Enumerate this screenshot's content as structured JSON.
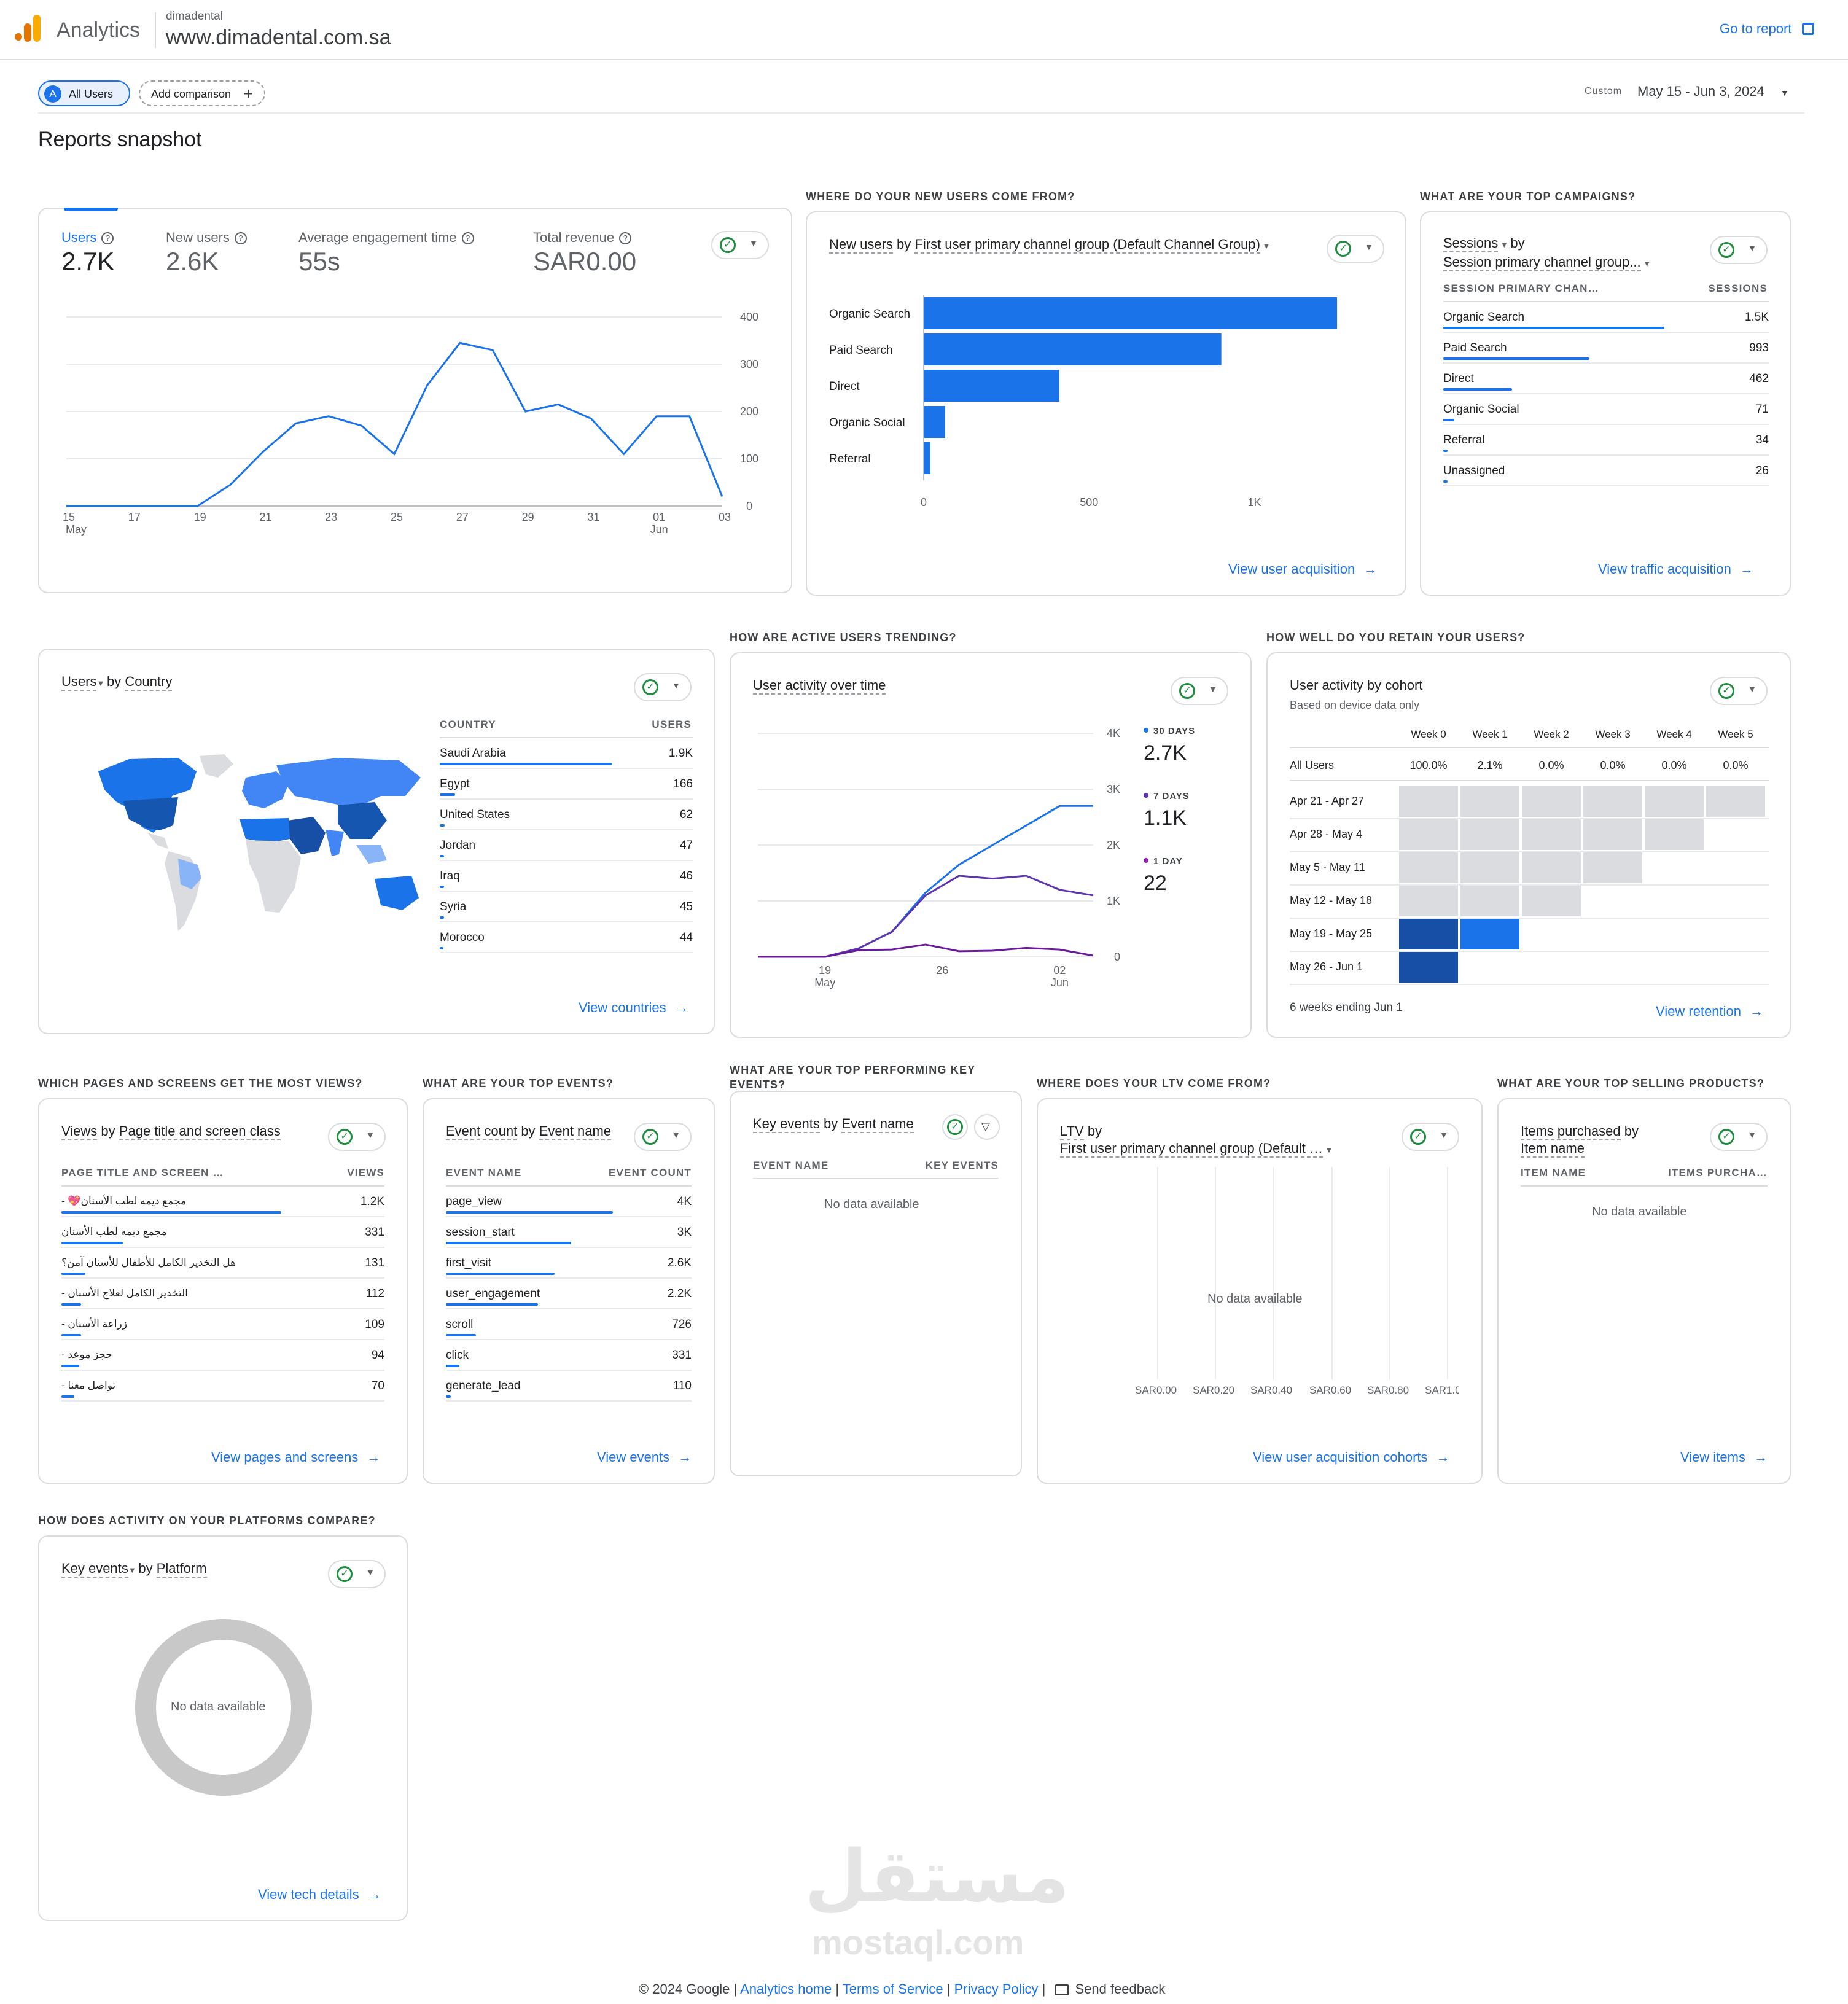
{
  "header": {
    "app_name": "Analytics",
    "account": "dimadental",
    "property": "www.dimadental.com.sa",
    "go_to_report": "Go to report"
  },
  "toolbar": {
    "segment_letter": "A",
    "segment": "All Users",
    "add_comparison": "Add comparison",
    "date_label": "Custom",
    "date_range": "May 15 - Jun 3, 2024"
  },
  "page_title": "Reports snapshot",
  "overview": {
    "metrics": [
      {
        "label": "Users",
        "value": "2.7K"
      },
      {
        "label": "New users",
        "value": "2.6K"
      },
      {
        "label": "Average engagement time",
        "value": "55s"
      },
      {
        "label": "Total revenue",
        "value": "SAR0.00"
      }
    ],
    "y_ticks": [
      "400",
      "300",
      "200",
      "100",
      "0"
    ],
    "x_ticks": [
      "15",
      "17",
      "19",
      "21",
      "23",
      "25",
      "27",
      "29",
      "31",
      "01",
      "03"
    ],
    "x_sub": {
      "may": "May",
      "jun": "Jun"
    }
  },
  "acquisition": {
    "heading": "WHERE DO YOUR NEW USERS COME FROM?",
    "title_metric": "New users",
    "title_by": "by",
    "title_dim": "First user primary channel group (Default Channel Group)",
    "ticks": [
      "0",
      "500",
      "1K"
    ],
    "link": "View user acquisition"
  },
  "campaigns": {
    "heading": "WHAT ARE YOUR TOP CAMPAIGNS?",
    "title_metric": "Sessions",
    "title_by": "by",
    "title_dim": "Session primary channel group...",
    "col1": "SESSION PRIMARY CHAN…",
    "col2": "SESSIONS",
    "rows": [
      {
        "name": "Organic Search",
        "value": "1.5K",
        "pct": 1.0
      },
      {
        "name": "Paid Search",
        "value": "993",
        "pct": 0.66
      },
      {
        "name": "Direct",
        "value": "462",
        "pct": 0.31
      },
      {
        "name": "Organic Social",
        "value": "71",
        "pct": 0.05
      },
      {
        "name": "Referral",
        "value": "34",
        "pct": 0.02
      },
      {
        "name": "Unassigned",
        "value": "26",
        "pct": 0.02
      }
    ],
    "link": "View traffic acquisition"
  },
  "country": {
    "title_metric": "Users",
    "title_by": "by",
    "title_dim": "Country",
    "col1": "COUNTRY",
    "col2": "USERS",
    "rows": [
      {
        "name": "Saudi Arabia",
        "value": "1.9K",
        "pct": 1.0
      },
      {
        "name": "Egypt",
        "value": "166",
        "pct": 0.09
      },
      {
        "name": "United States",
        "value": "62",
        "pct": 0.03
      },
      {
        "name": "Jordan",
        "value": "47",
        "pct": 0.025
      },
      {
        "name": "Iraq",
        "value": "46",
        "pct": 0.024
      },
      {
        "name": "Syria",
        "value": "45",
        "pct": 0.024
      },
      {
        "name": "Morocco",
        "value": "44",
        "pct": 0.023
      }
    ],
    "link": "View countries"
  },
  "activity": {
    "heading": "HOW ARE ACTIVE USERS TRENDING?",
    "title": "User activity over time",
    "y_ticks": [
      "4K",
      "3K",
      "2K",
      "1K",
      "0"
    ],
    "x_ticks": [
      "19",
      "26",
      "02"
    ],
    "x_sub": {
      "may": "May",
      "jun": "Jun"
    },
    "legend": [
      {
        "label": "30 DAYS",
        "value": "2.7K",
        "color": "#1a73e8"
      },
      {
        "label": "7 DAYS",
        "value": "1.1K",
        "color": "#5e35b1"
      },
      {
        "label": "1 DAY",
        "value": "22",
        "color": "#8e24aa"
      }
    ]
  },
  "retention": {
    "heading": "HOW WELL DO YOU RETAIN YOUR USERS?",
    "title": "User activity by cohort",
    "subtitle": "Based on device data only",
    "weeks": [
      "Week 0",
      "Week 1",
      "Week 2",
      "Week 3",
      "Week 4",
      "Week 5"
    ],
    "all_users_label": "All Users",
    "all_users": [
      "100.0%",
      "2.1%",
      "0.0%",
      "0.0%",
      "0.0%",
      "0.0%"
    ],
    "cohorts": [
      "Apr 21 - Apr 27",
      "Apr 28 - May 4",
      "May 5 - May 11",
      "May 12 - May 18",
      "May 19 - May 25",
      "May 26 - Jun 1"
    ],
    "footer": "6 weeks ending Jun 1",
    "link": "View retention"
  },
  "pages": {
    "heading": "WHICH PAGES AND SCREENS GET THE MOST VIEWS?",
    "title_metric": "Views",
    "title_by": "by",
    "title_dim": "Page title and screen class",
    "col1": "PAGE TITLE AND SCREEN …",
    "col2": "VIEWS",
    "rows": [
      {
        "name": "مجمع ديمه لطب الأسنان💖 -",
        "value": "1.2K",
        "pct": 1.0
      },
      {
        "name": "مجمع ديمه لطب الأسنان",
        "value": "331",
        "pct": 0.28
      },
      {
        "name": "هل التخدير الكامل للأطفال للأسنان آمن؟",
        "value": "131",
        "pct": 0.11
      },
      {
        "name": "التخدير الكامل لعلاج الأسنان -",
        "value": "112",
        "pct": 0.09
      },
      {
        "name": "زراعة الأسنان -",
        "value": "109",
        "pct": 0.09
      },
      {
        "name": "حجز موعد -",
        "value": "94",
        "pct": 0.08
      },
      {
        "name": "تواصل معنا -",
        "value": "70",
        "pct": 0.06
      }
    ],
    "link": "View pages and screens"
  },
  "events": {
    "heading": "WHAT ARE YOUR TOP EVENTS?",
    "title_metric": "Event count",
    "title_by": "by",
    "title_dim": "Event name",
    "col1": "EVENT NAME",
    "col2": "EVENT COUNT",
    "rows": [
      {
        "name": "page_view",
        "value": "4K",
        "pct": 1.0
      },
      {
        "name": "session_start",
        "value": "3K",
        "pct": 0.75
      },
      {
        "name": "first_visit",
        "value": "2.6K",
        "pct": 0.65
      },
      {
        "name": "user_engagement",
        "value": "2.2K",
        "pct": 0.55
      },
      {
        "name": "scroll",
        "value": "726",
        "pct": 0.18
      },
      {
        "name": "click",
        "value": "331",
        "pct": 0.08
      },
      {
        "name": "generate_lead",
        "value": "110",
        "pct": 0.03
      }
    ],
    "link": "View events"
  },
  "key_events": {
    "heading": "WHAT ARE YOUR TOP PERFORMING KEY EVENTS?",
    "title_metric": "Key events",
    "title_by": "by",
    "title_dim": "Event name",
    "col1": "EVENT NAME",
    "col2": "KEY EVENTS",
    "nodata": "No data available"
  },
  "ltv": {
    "heading": "WHERE DOES YOUR LTV COME FROM?",
    "title_metric": "LTV",
    "title_by": "by",
    "title_dim": "First user primary channel group (Default …",
    "nodata": "No data available",
    "ticks": [
      "SAR0.00",
      "SAR0.20",
      "SAR0.40",
      "SAR0.60",
      "SAR0.80",
      "SAR1.0"
    ],
    "link": "View user acquisition cohorts"
  },
  "products": {
    "heading": "WHAT ARE YOUR TOP SELLING PRODUCTS?",
    "title_metric": "Items purchased",
    "title_by": "by",
    "title_dim": "Item name",
    "col1": "ITEM NAME",
    "col2": "ITEMS PURCHA…",
    "nodata": "No data available",
    "link": "View items"
  },
  "platforms": {
    "heading": "HOW DOES ACTIVITY ON YOUR PLATFORMS COMPARE?",
    "title_metric": "Key events",
    "title_by": "by",
    "title_dim": "Platform",
    "nodata": "No data available",
    "link": "View tech details"
  },
  "watermark": {
    "arabic": "مستقل",
    "latin": "mostaql.com"
  },
  "footer": {
    "copyright": "© 2024 Google",
    "analytics_home": "Analytics home",
    "terms": "Terms of Service",
    "privacy": "Privacy Policy",
    "feedback": "Send feedback"
  },
  "chart_data": [
    {
      "type": "line",
      "title": "",
      "series": [
        {
          "name": "Users",
          "values": [
            0,
            0,
            0,
            0,
            0,
            45,
            115,
            175,
            190,
            170,
            110,
            255,
            345,
            330,
            200,
            215,
            185,
            110,
            190,
            190,
            20
          ]
        }
      ],
      "x": [
        "May 15",
        "May 16",
        "May 17",
        "May 18",
        "May 19",
        "May 20",
        "May 21",
        "May 22",
        "May 23",
        "May 24",
        "May 25",
        "May 26",
        "May 27",
        "May 28",
        "May 29",
        "May 30",
        "May 31",
        "Jun 1",
        "Jun 2",
        "Jun 3",
        "Jun 4"
      ],
      "ylim": [
        0,
        400
      ]
    },
    {
      "type": "bar",
      "orientation": "horizontal",
      "categories": [
        "Organic Search",
        "Paid Search",
        "Direct",
        "Organic Social",
        "Referral"
      ],
      "values": [
        1250,
        900,
        410,
        65,
        20
      ],
      "xlim": [
        0,
        1300
      ]
    },
    {
      "type": "line",
      "title": "User activity over time",
      "x": [
        "May 15",
        "May 17",
        "May 19",
        "May 21",
        "May 23",
        "May 25",
        "May 27",
        "May 29",
        "May 31",
        "Jun 2",
        "Jun 3"
      ],
      "series": [
        {
          "name": "30 DAYS",
          "values": [
            0,
            0,
            0,
            150,
            450,
            1150,
            1650,
            2000,
            2350,
            2700,
            2700
          ]
        },
        {
          "name": "7 DAYS",
          "values": [
            0,
            0,
            0,
            150,
            450,
            1100,
            1450,
            1400,
            1450,
            1200,
            1100
          ]
        },
        {
          "name": "1 DAY",
          "values": [
            0,
            0,
            0,
            120,
            130,
            220,
            100,
            110,
            160,
            130,
            22
          ]
        }
      ],
      "ylim": [
        0,
        4000
      ]
    }
  ]
}
